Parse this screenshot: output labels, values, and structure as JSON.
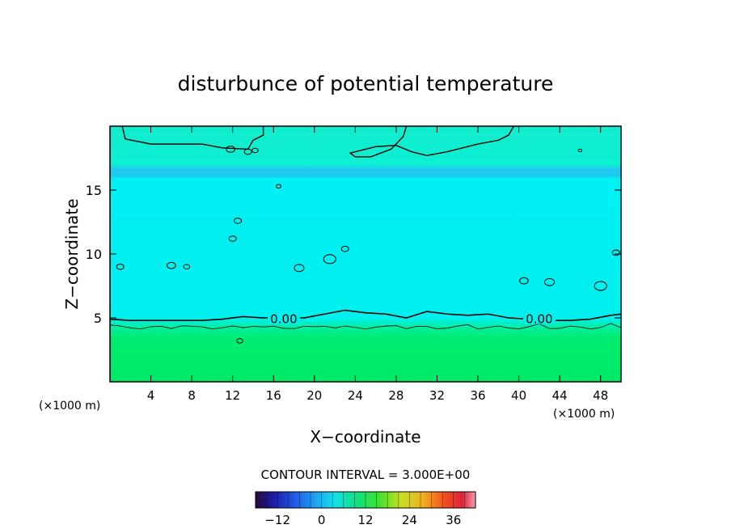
{
  "chart_data": {
    "type": "heatmap",
    "title": "disturbunce of potential temperature",
    "xlabel": "X−coordinate",
    "ylabel": "Z−coordinate",
    "x_unit_left": "(×1000 m)",
    "x_unit_right": "(×1000 m)",
    "xlim": [
      0,
      50
    ],
    "ylim": [
      0,
      20
    ],
    "x_ticks": [
      "4",
      "8",
      "12",
      "16",
      "20",
      "24",
      "28",
      "32",
      "36",
      "40",
      "44",
      "48"
    ],
    "x_tick_values": [
      4,
      8,
      12,
      16,
      20,
      24,
      28,
      32,
      36,
      40,
      44,
      48
    ],
    "y_ticks": [
      "5",
      "10",
      "15"
    ],
    "y_tick_values": [
      5,
      10,
      15
    ],
    "contour_interval_label": "CONTOUR INTERVAL = 3.000E+00",
    "contour_labels": [
      {
        "text": "0.00",
        "x": 17.0,
        "z": 4.9
      },
      {
        "text": "0.00",
        "x": 42.0,
        "z": 4.9
      }
    ],
    "zero_contour_z": [
      [
        0,
        4.9
      ],
      [
        2,
        4.8
      ],
      [
        5,
        4.8
      ],
      [
        9,
        4.8
      ],
      [
        11,
        4.9
      ],
      [
        13,
        5.1
      ],
      [
        15,
        5.0
      ],
      [
        19,
        5.0
      ],
      [
        21,
        5.3
      ],
      [
        23,
        5.6
      ],
      [
        25,
        5.4
      ],
      [
        27,
        5.3
      ],
      [
        29,
        5.0
      ],
      [
        31,
        5.5
      ],
      [
        33,
        5.3
      ],
      [
        35,
        5.2
      ],
      [
        37,
        5.3
      ],
      [
        39,
        5.0
      ],
      [
        41,
        4.9
      ],
      [
        43,
        4.8
      ],
      [
        45,
        4.8
      ],
      [
        47,
        4.9
      ],
      [
        49,
        5.2
      ],
      [
        50,
        5.3
      ]
    ],
    "field_bands": [
      {
        "z_from": 0,
        "z_to": 4.2,
        "value": 3
      },
      {
        "z_from": 4.2,
        "z_to": 16.0,
        "value": -1
      },
      {
        "z_from": 16.0,
        "z_to": 16.6,
        "value": -3
      },
      {
        "z_from": 16.6,
        "z_to": 20,
        "value": 0
      }
    ],
    "colorbar": {
      "min": -18,
      "max": 42,
      "tick_labels": [
        "−12",
        "0",
        "12",
        "24",
        "36"
      ],
      "tick_values": [
        -12,
        0,
        12,
        24,
        36
      ]
    },
    "colors": {
      "low_field": "#00ea6a",
      "mid_field": "#00f0ef",
      "upper_band": "#22c6ef",
      "top_field": "#0df0d4"
    }
  }
}
